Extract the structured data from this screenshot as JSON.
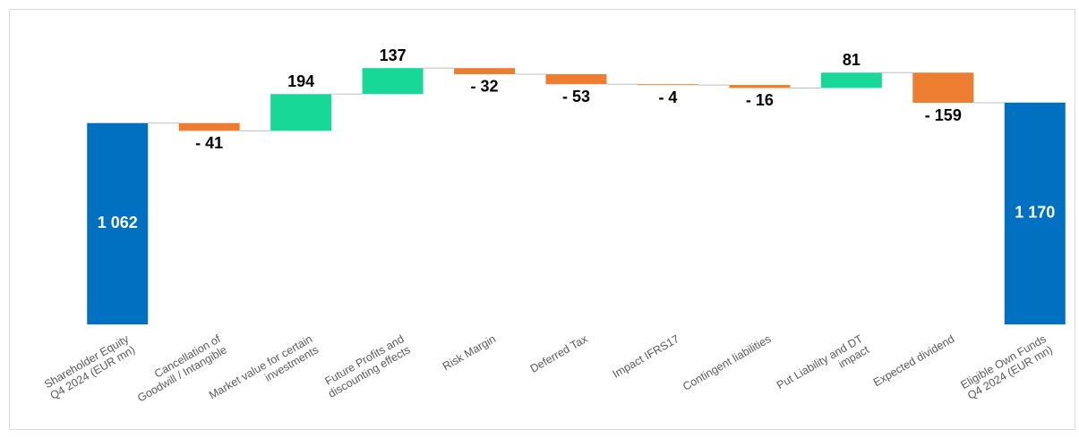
{
  "chart_data": {
    "type": "waterfall",
    "categories": [
      [
        "Shareholder Equity",
        "Q4 2024 (EUR mn)"
      ],
      [
        "Cancellation of",
        "Goodwill / Intangible"
      ],
      [
        "Market value for certain",
        "investments"
      ],
      [
        "Future Profits and",
        "discounting effects"
      ],
      [
        "Risk Margin"
      ],
      [
        "Deferred Tax"
      ],
      [
        "Impact IFRS17"
      ],
      [
        "Contingent liabilities"
      ],
      [
        "Put Liability and DT",
        "impact"
      ],
      [
        "Expected dividend"
      ],
      [
        "Eligible Own Funds",
        "Q4 2024 (EUR mn)"
      ]
    ],
    "measure": [
      "total",
      "relative",
      "relative",
      "relative",
      "relative",
      "relative",
      "relative",
      "relative",
      "relative",
      "relative",
      "total"
    ],
    "values": [
      1062,
      -41,
      194,
      137,
      -32,
      -53,
      -4,
      -16,
      81,
      -159,
      1170
    ],
    "value_labels": [
      "1 062",
      "- 41",
      "194",
      "137",
      "- 32",
      "- 53",
      "- 4",
      "- 16",
      "81",
      "- 159",
      "1 170"
    ],
    "colors": {
      "total": "#0070c0",
      "increase": "#17d897",
      "decrease": "#ed7d31"
    },
    "ylim": [
      0,
      1400
    ]
  }
}
